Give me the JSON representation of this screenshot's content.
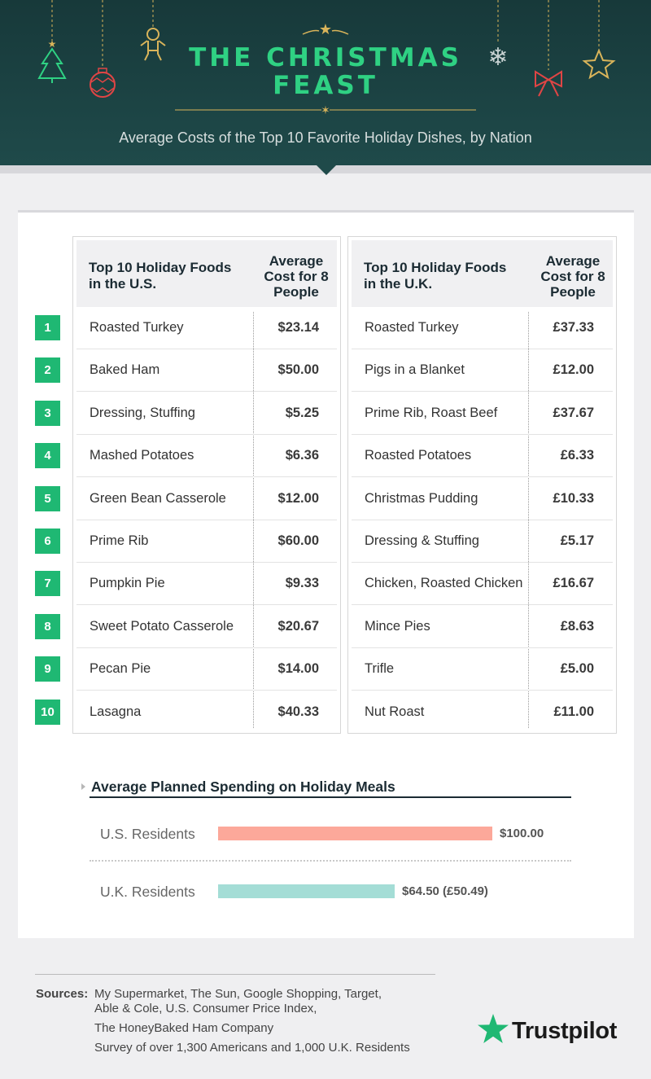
{
  "header": {
    "title_line1": "THE CHRISTMAS",
    "title_line2": "FEAST",
    "subtitle": "Average Costs of the Top 10 Favorite Holiday Dishes, by Nation"
  },
  "colors": {
    "header_bg": "#1f4a4a",
    "title": "#2fd183",
    "rank_badge": "#1fb873",
    "us_bar": "#fca89a",
    "uk_bar": "#a4ddd6",
    "gold": "#d9b45a",
    "red": "#e04545"
  },
  "icons": [
    "christmas-tree-icon",
    "ornament-ball-icon",
    "gingerbread-man-icon",
    "star-icon",
    "snowflake-icon",
    "bow-icon",
    "star-icon"
  ],
  "ranks": [
    "1",
    "2",
    "3",
    "4",
    "5",
    "6",
    "7",
    "8",
    "9",
    "10"
  ],
  "chart_data": [
    {
      "type": "table",
      "title": "",
      "columns": [
        "Top 10 Holiday Foods in the U.S.",
        "Average Cost for 8 People"
      ],
      "rows": [
        [
          "Roasted Turkey",
          "$23.14"
        ],
        [
          "Baked Ham",
          "$50.00"
        ],
        [
          "Dressing, Stuffing",
          "$5.25"
        ],
        [
          "Mashed Potatoes",
          "$6.36"
        ],
        [
          "Green Bean Casserole",
          "$12.00"
        ],
        [
          "Prime Rib",
          "$60.00"
        ],
        [
          "Pumpkin Pie",
          "$9.33"
        ],
        [
          "Sweet Potato Casserole",
          "$20.67"
        ],
        [
          "Pecan Pie",
          "$14.00"
        ],
        [
          "Lasagna",
          "$40.33"
        ]
      ]
    },
    {
      "type": "table",
      "title": "",
      "columns": [
        "Top 10 Holiday Foods in the U.K.",
        "Average Cost for 8 People"
      ],
      "rows": [
        [
          "Roasted Turkey",
          "£37.33"
        ],
        [
          "Pigs in a Blanket",
          "£12.00"
        ],
        [
          "Prime Rib, Roast Beef",
          "£37.67"
        ],
        [
          "Roasted Potatoes",
          "£6.33"
        ],
        [
          "Christmas Pudding",
          "£10.33"
        ],
        [
          "Dressing & Stuffing",
          "£5.17"
        ],
        [
          "Chicken, Roasted Chicken",
          "£16.67"
        ],
        [
          "Mince Pies",
          "£8.63"
        ],
        [
          "Trifle",
          "£5.00"
        ],
        [
          "Nut Roast",
          "£11.00"
        ]
      ]
    },
    {
      "type": "bar",
      "title": "Average Planned Spending on Holiday Meals",
      "categories": [
        "U.S. Residents",
        "U.K. Residents"
      ],
      "values": [
        100.0,
        64.5
      ],
      "value_labels": [
        "$100.00",
        "$64.50 (£50.49)"
      ],
      "orientation": "horizontal",
      "xlim": [
        0,
        100
      ],
      "grid": false
    }
  ],
  "footer": {
    "sources_label": "Sources:",
    "sources_lines": [
      "My Supermarket, The Sun, Google Shopping, Target,",
      "Able & Cole, U.S. Consumer Price Index,",
      "The HoneyBaked Ham Company",
      "Survey of over 1,300 Americans and 1,000 U.K. Residents"
    ],
    "brand": "Trustpilot"
  }
}
